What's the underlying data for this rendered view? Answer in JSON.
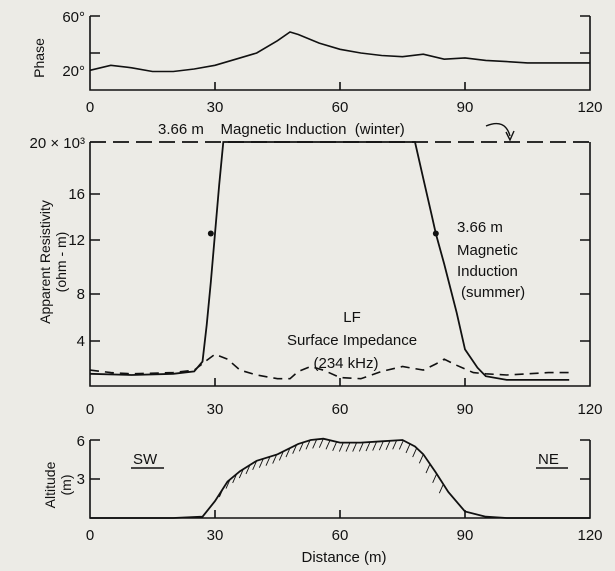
{
  "colors": {
    "background": "#ecebe6",
    "ink": "#111111"
  },
  "chart_data": [
    {
      "type": "line",
      "ylabel": "Phase",
      "xlim": [
        0,
        120
      ],
      "ylim": [
        0,
        60
      ],
      "x_ticks": [
        "0",
        "30",
        "60",
        "90",
        "120"
      ],
      "y_ticks": [
        {
          "value": 20,
          "label": "20°"
        },
        {
          "value": 60,
          "label": "60°"
        }
      ],
      "series": [
        {
          "style": "solid",
          "x": [
            0,
            5,
            10,
            15,
            20,
            25,
            30,
            35,
            40,
            45,
            48,
            50,
            55,
            60,
            65,
            70,
            75,
            80,
            85,
            90,
            95,
            100,
            105,
            110,
            115,
            120
          ],
          "values": [
            16,
            20,
            18,
            15,
            15,
            17,
            20,
            25,
            30,
            40,
            47,
            45,
            38,
            33,
            30,
            28,
            27,
            29,
            25,
            26,
            24,
            23,
            22,
            22,
            22,
            22
          ]
        }
      ]
    },
    {
      "type": "line",
      "ylabel": "Apparent Resistivity\n(ohm - m)",
      "xlim": [
        0,
        120
      ],
      "ylim": [
        0,
        20
      ],
      "x_ticks": [
        "0",
        "30",
        "60",
        "90",
        "120"
      ],
      "y_ticks": [
        {
          "value": 4,
          "label": "4"
        },
        {
          "value": 8,
          "label": "8"
        },
        {
          "value": 12,
          "label": "12"
        },
        {
          "value": 16,
          "label": "16"
        },
        {
          "value": 20,
          "label": "20 × 10³"
        }
      ],
      "annotations": [
        "3.66 m    Magnetic Induction  (winter)",
        "3.66 m",
        "Magnetic",
        "Induction",
        "(summer)",
        "LF",
        "Surface Impedance",
        "(234 kHz)"
      ],
      "series": [
        {
          "style": "long-dash",
          "x": [
            0,
            120
          ],
          "values": [
            20,
            20
          ]
        },
        {
          "style": "solid",
          "x": [
            0,
            10,
            20,
            25,
            27,
            28,
            29,
            30,
            31,
            32,
            78,
            80,
            82,
            83,
            85,
            88,
            90,
            93,
            95,
            100,
            110,
            115
          ],
          "values": [
            1.0,
            0.9,
            1.0,
            1.2,
            2.0,
            5.0,
            8.5,
            12.5,
            16.5,
            20,
            20,
            17,
            14,
            12.5,
            10,
            6,
            3,
            1.5,
            0.8,
            0.5,
            0.5,
            0.5
          ]
        },
        {
          "style": "dash",
          "x": [
            0,
            5,
            10,
            20,
            25,
            28,
            30,
            33,
            36,
            40,
            45,
            48,
            50,
            53,
            56,
            60,
            65,
            70,
            75,
            80,
            83,
            85,
            88,
            92,
            95,
            100,
            105,
            110,
            115
          ],
          "values": [
            1.3,
            1.1,
            1.0,
            1.1,
            1.3,
            2.1,
            2.6,
            2.2,
            1.3,
            0.9,
            0.6,
            0.6,
            1.2,
            1.6,
            1.3,
            0.7,
            0.6,
            1.2,
            1.6,
            1.3,
            1.8,
            2.2,
            1.7,
            1.1,
            1.0,
            0.9,
            1.0,
            1.1,
            1.1
          ]
        }
      ],
      "markers": [
        {
          "x": 29,
          "y": 12.5
        },
        {
          "x": 83,
          "y": 12.5
        }
      ]
    },
    {
      "type": "area",
      "xlabel": "Distance (m)",
      "ylabel": "Altitude\n(m)",
      "xlim": [
        0,
        120
      ],
      "ylim": [
        0,
        6
      ],
      "x_ticks": [
        "0",
        "30",
        "60",
        "90",
        "120"
      ],
      "y_ticks": [
        {
          "value": 3,
          "label": "3"
        },
        {
          "value": 6,
          "label": "6"
        }
      ],
      "labels": [
        "SW",
        "NE"
      ],
      "series": [
        {
          "style": "solid",
          "x": [
            0,
            10,
            20,
            27,
            30,
            33,
            36,
            40,
            45,
            50,
            53,
            56,
            60,
            65,
            70,
            75,
            78,
            80,
            83,
            86,
            90,
            95,
            100,
            110,
            120
          ],
          "values": [
            0,
            0,
            0,
            0.1,
            1.3,
            2.8,
            3.6,
            4.4,
            4.9,
            5.7,
            6.0,
            6.1,
            5.8,
            5.8,
            5.9,
            6.0,
            5.5,
            4.9,
            3.5,
            2.0,
            0.5,
            0.1,
            0,
            0,
            0
          ]
        }
      ]
    }
  ]
}
